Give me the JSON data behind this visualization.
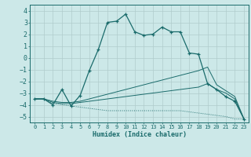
{
  "xlabel": "Humidex (Indice chaleur)",
  "x_values": [
    0,
    1,
    2,
    3,
    4,
    5,
    6,
    7,
    8,
    9,
    10,
    11,
    12,
    13,
    14,
    15,
    16,
    17,
    18,
    19,
    20,
    21,
    22,
    23
  ],
  "line1_y": [
    -3.5,
    -3.5,
    -3.9,
    -4.0,
    -4.1,
    -4.2,
    -4.3,
    -4.4,
    -4.5,
    -4.5,
    -4.5,
    -4.5,
    -4.5,
    -4.5,
    -4.5,
    -4.5,
    -4.5,
    -4.6,
    -4.7,
    -4.8,
    -4.9,
    -5.0,
    -5.2,
    -5.2
  ],
  "line2_y": [
    -3.5,
    -3.5,
    -3.8,
    -3.9,
    -3.9,
    -3.8,
    -3.7,
    -3.6,
    -3.5,
    -3.4,
    -3.3,
    -3.2,
    -3.1,
    -3.0,
    -2.9,
    -2.8,
    -2.7,
    -2.6,
    -2.5,
    -2.2,
    -2.7,
    -3.0,
    -3.5,
    -5.2
  ],
  "line3_y": [
    -3.5,
    -3.5,
    -3.7,
    -3.8,
    -3.8,
    -3.7,
    -3.5,
    -3.3,
    -3.1,
    -2.9,
    -2.7,
    -2.5,
    -2.3,
    -2.1,
    -1.9,
    -1.7,
    -1.5,
    -1.3,
    -1.1,
    -0.8,
    -2.3,
    -2.8,
    -3.3,
    -5.2
  ],
  "line4_y": [
    -3.5,
    -3.5,
    -4.0,
    -2.7,
    -4.1,
    -3.2,
    -1.1,
    0.7,
    3.0,
    3.1,
    3.7,
    2.2,
    1.9,
    2.0,
    2.6,
    2.2,
    2.2,
    0.4,
    0.3,
    -2.2,
    -2.7,
    -3.3,
    -3.7,
    -5.2
  ],
  "bg_color": "#cce8e8",
  "line_color": "#1a6b6b",
  "grid_color": "#b8d8d8",
  "ylim": [
    -5.5,
    4.5
  ],
  "xlim": [
    -0.5,
    23.5
  ],
  "yticks": [
    -5,
    -4,
    -3,
    -2,
    -1,
    0,
    1,
    2,
    3,
    4
  ]
}
